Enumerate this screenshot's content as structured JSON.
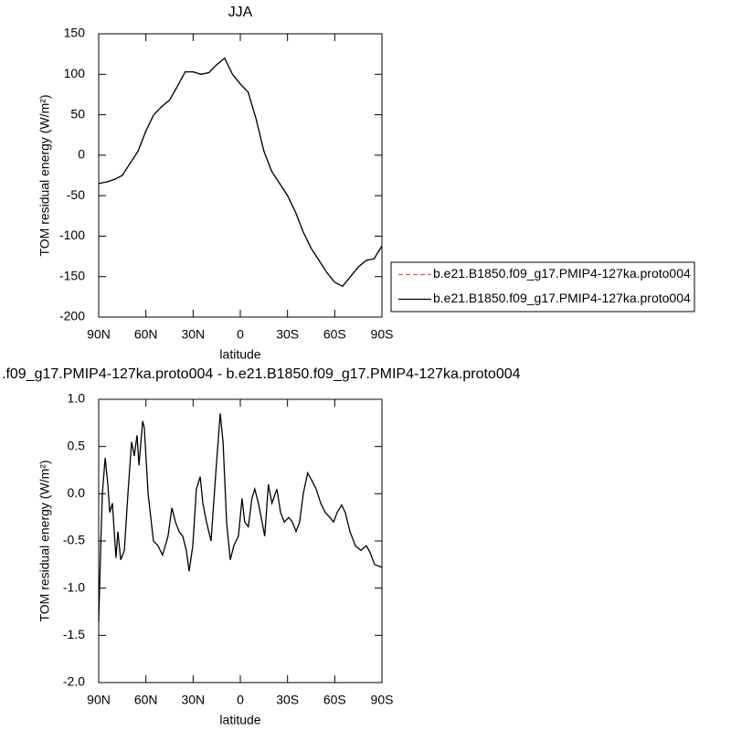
{
  "chart_data": [
    {
      "type": "line",
      "title": "JJA",
      "xlabel": "latitude",
      "ylabel": "TOM residual energy (W/m²)",
      "x": [
        90,
        85,
        80,
        75,
        70,
        65,
        60,
        55,
        50,
        45,
        40,
        35,
        30,
        25,
        20,
        15,
        10,
        5,
        0,
        -5,
        -10,
        -15,
        -20,
        -25,
        -30,
        -35,
        -40,
        -45,
        -50,
        -55,
        -60,
        -65,
        -70,
        -75,
        -80,
        -85,
        -90
      ],
      "series": [
        {
          "name": "b.e21.B1850.f09_g17.PMIP4-127ka.proto004",
          "color": "#e05050",
          "line_style": "dashed",
          "values": [
            -35,
            -33,
            -30,
            -25,
            -10,
            5,
            30,
            50,
            60,
            68,
            85,
            103,
            103,
            100,
            102,
            112,
            120,
            100,
            88,
            78,
            45,
            5,
            -20,
            -35,
            -50,
            -70,
            -95,
            -115,
            -130,
            -145,
            -157,
            -162,
            -150,
            -138,
            -130,
            -128,
            -112
          ]
        },
        {
          "name": "b.e21.B1850.f09_g17.PMIP4-127ka.proto004",
          "color": "#000000",
          "line_style": "solid",
          "values": [
            -35,
            -33,
            -30,
            -25,
            -10,
            5,
            30,
            50,
            60,
            68,
            85,
            103,
            103,
            100,
            102,
            112,
            120,
            100,
            88,
            78,
            45,
            5,
            -20,
            -35,
            -50,
            -70,
            -95,
            -115,
            -130,
            -145,
            -157,
            -162,
            -150,
            -138,
            -130,
            -128,
            -112
          ]
        }
      ],
      "xlim": [
        90,
        -90
      ],
      "xticks": [
        {
          "value": 90,
          "label": "90N"
        },
        {
          "value": 60,
          "label": "60N"
        },
        {
          "value": 30,
          "label": "30N"
        },
        0,
        {
          "value": -30,
          "label": "30S"
        },
        {
          "value": -60,
          "label": "60S"
        },
        {
          "value": -90,
          "label": "90S"
        }
      ],
      "ylim": [
        -200,
        150
      ],
      "yticks": [
        150,
        100,
        50,
        0,
        -50,
        -100,
        -150,
        -200
      ],
      "legend": "right"
    },
    {
      "type": "line",
      "title": ".f09_g17.PMIP4-127ka.proto004 - b.e21.B1850.f09_g17.PMIP4-127ka.proto004",
      "xlabel": "latitude",
      "ylabel": "TOM residual energy (W/m²)",
      "x": [
        90,
        88.8,
        87.7,
        85.9,
        84.2,
        83,
        81.3,
        79,
        77.8,
        76,
        73.7,
        71.4,
        69.1,
        67.4,
        65.6,
        64.4,
        62.1,
        61,
        58.6,
        55.2,
        52.3,
        49.4,
        45.9,
        43.5,
        41.2,
        38.9,
        36.6,
        34.3,
        32.5,
        30.2,
        27.9,
        25.5,
        23.8,
        21.5,
        18.6,
        15.7,
        12.8,
        11,
        8.7,
        6.4,
        4.1,
        1.2,
        -1.1,
        -2.8,
        -5.1,
        -7.4,
        -9.2,
        -11.5,
        -13.8,
        -15.5,
        -17.8,
        -20.1,
        -23.2,
        -25.6,
        -27.9,
        -30.8,
        -33.1,
        -35.4,
        -37.7,
        -40,
        -42.8,
        -45.1,
        -48.2,
        -51.1,
        -54,
        -56.9,
        -59.2,
        -61.5,
        -64.4,
        -66.7,
        -69.7,
        -73.1,
        -76.6,
        -80.1,
        -82.4,
        -85.3,
        -90
      ],
      "values": [
        -1.35,
        -0.6,
        0,
        0.38,
        0.1,
        -0.2,
        -0.1,
        -0.68,
        -0.4,
        -0.7,
        -0.6,
        0,
        0.55,
        0.4,
        0.62,
        0.3,
        0.77,
        0.7,
        0,
        -0.5,
        -0.55,
        -0.65,
        -0.45,
        -0.15,
        -0.3,
        -0.4,
        -0.45,
        -0.6,
        -0.82,
        -0.55,
        0.05,
        0.18,
        -0.1,
        -0.3,
        -0.5,
        0.2,
        0.85,
        0.55,
        -0.3,
        -0.7,
        -0.55,
        -0.45,
        -0.05,
        -0.3,
        -0.35,
        -0.05,
        0.05,
        -0.1,
        -0.3,
        -0.45,
        0.1,
        -0.1,
        0.05,
        -0.2,
        -0.3,
        -0.25,
        -0.3,
        -0.4,
        -0.3,
        0,
        0.22,
        0.15,
        0.05,
        -0.1,
        -0.2,
        -0.25,
        -0.3,
        -0.2,
        -0.12,
        -0.2,
        -0.4,
        -0.55,
        -0.6,
        -0.55,
        -0.62,
        -0.75,
        -0.78
      ],
      "color": "#000000",
      "xlim": [
        90,
        -90
      ],
      "xticks": [
        {
          "value": 90,
          "label": "90N"
        },
        {
          "value": 60,
          "label": "60N"
        },
        {
          "value": 30,
          "label": "30N"
        },
        0,
        {
          "value": -30,
          "label": "30S"
        },
        {
          "value": -60,
          "label": "60S"
        },
        {
          "value": -90,
          "label": "90S"
        }
      ],
      "ylim": [
        -2,
        1
      ],
      "yticks": [
        {
          "value": 1,
          "label": "1.0"
        },
        0.5,
        {
          "value": 0,
          "label": "0.0"
        },
        -0.5,
        {
          "value": -1,
          "label": "-1.0"
        },
        -1.5,
        {
          "value": -2,
          "label": "-2.0"
        }
      ]
    }
  ]
}
